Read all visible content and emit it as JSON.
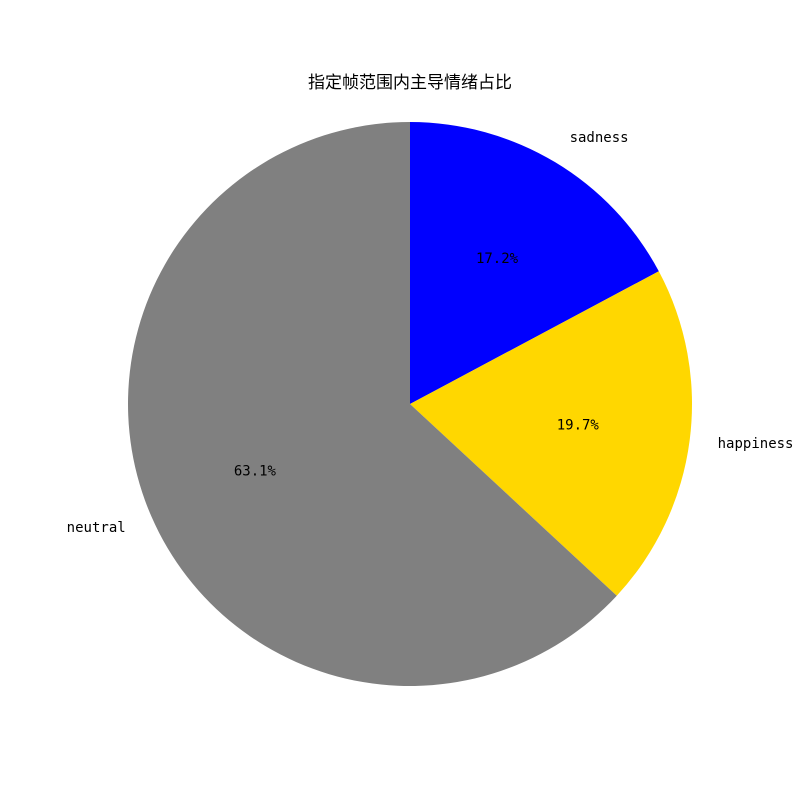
{
  "chart_data": {
    "type": "pie",
    "title": "指定帧范围内主导情绪占比",
    "categories": [
      "sadness",
      "happiness",
      "neutral"
    ],
    "values": [
      17.2,
      19.7,
      63.1
    ],
    "labels": [
      "17.2%",
      "19.7%",
      "63.1%"
    ],
    "colors": [
      "#0000ff",
      "#ffd700",
      "#808080"
    ],
    "start_angle_deg": 90,
    "direction": "clockwise"
  }
}
